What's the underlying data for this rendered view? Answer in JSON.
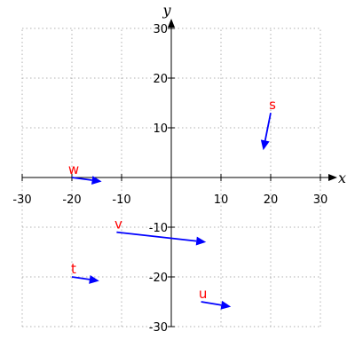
{
  "chart_data": {
    "type": "vector_field",
    "xlabel": "x",
    "ylabel": "y",
    "xlim": [
      -30,
      30
    ],
    "ylim": [
      -30,
      30
    ],
    "xticks": [
      -30,
      -20,
      -10,
      10,
      20,
      30
    ],
    "yticks": [
      -30,
      -20,
      -10,
      10,
      20,
      30
    ],
    "tick_labels_x": [
      "-30",
      "-20",
      "-10",
      "10",
      "20",
      "30"
    ],
    "tick_labels_y": [
      "-30",
      "-20",
      "-10",
      "10",
      "20",
      "30"
    ],
    "grid": true,
    "colors": {
      "vector": "#0000ff",
      "label": "#ff0000",
      "grid": "#b0b0b0",
      "axis": "#000000"
    },
    "vectors": [
      {
        "name": "s",
        "x": 20,
        "y": 13,
        "dx": -1.5,
        "dy": -7.5
      },
      {
        "name": "w",
        "x": -20,
        "y": 0,
        "dx": 6,
        "dy": -0.8
      },
      {
        "name": "v",
        "x": -11,
        "y": -11,
        "dx": 18,
        "dy": -2
      },
      {
        "name": "t",
        "x": -20,
        "y": -20,
        "dx": 5.5,
        "dy": -0.8
      },
      {
        "name": "u",
        "x": 6,
        "y": -25,
        "dx": 6,
        "dy": -1
      }
    ]
  }
}
